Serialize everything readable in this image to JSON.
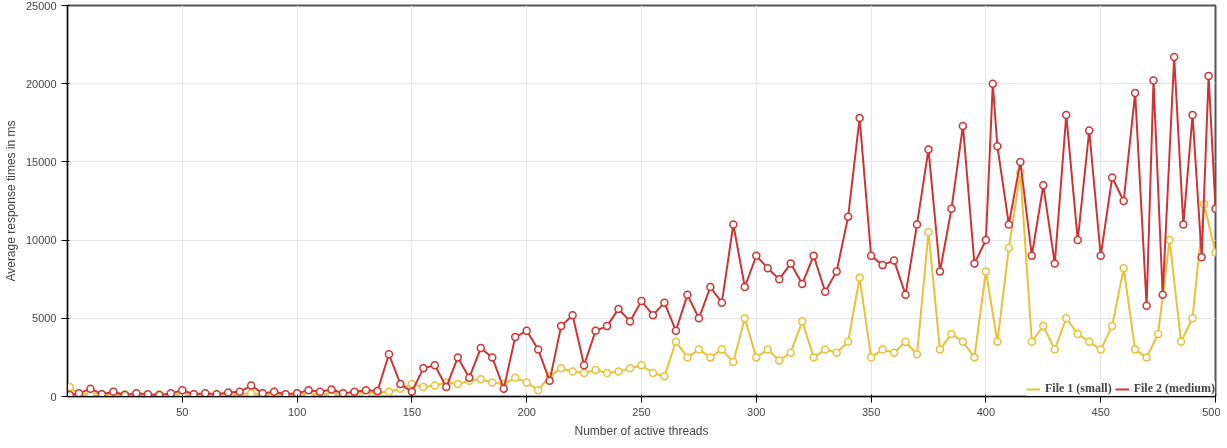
{
  "chart_data": {
    "type": "line",
    "xlabel": "Number of active threads",
    "ylabel": "Average response times in ms",
    "xlim": [
      0,
      500
    ],
    "ylim": [
      0,
      25000
    ],
    "xticks": [
      50,
      100,
      150,
      200,
      250,
      300,
      350,
      400,
      450,
      500
    ],
    "yticks": [
      0,
      5000,
      10000,
      15000,
      20000,
      25000
    ],
    "grid": true,
    "legend": "bottom right",
    "marker": "circle",
    "line_style": "solid",
    "series": [
      {
        "name": "File 1 (small)",
        "color": "#e8c13a",
        "x": [
          1,
          5,
          10,
          15,
          20,
          25,
          30,
          35,
          40,
          45,
          50,
          55,
          60,
          65,
          70,
          75,
          80,
          85,
          90,
          95,
          100,
          105,
          110,
          115,
          120,
          125,
          130,
          135,
          140,
          145,
          150,
          155,
          160,
          165,
          170,
          175,
          180,
          185,
          190,
          195,
          200,
          205,
          210,
          215,
          220,
          225,
          230,
          235,
          240,
          245,
          250,
          255,
          260,
          265,
          270,
          275,
          280,
          285,
          290,
          295,
          300,
          305,
          310,
          315,
          320,
          325,
          330,
          335,
          340,
          345,
          350,
          355,
          360,
          365,
          370,
          375,
          380,
          385,
          390,
          395,
          400,
          405,
          410,
          415,
          420,
          425,
          430,
          435,
          440,
          445,
          450,
          455,
          460,
          465,
          470,
          475,
          480,
          485,
          490,
          495,
          500
        ],
        "values": [
          600,
          150,
          200,
          150,
          100,
          150,
          120,
          100,
          150,
          120,
          200,
          150,
          100,
          150,
          120,
          150,
          200,
          150,
          120,
          150,
          200,
          150,
          200,
          150,
          200,
          250,
          200,
          250,
          300,
          500,
          800,
          600,
          700,
          900,
          800,
          1000,
          1100,
          900,
          800,
          1200,
          900,
          400,
          1300,
          1800,
          1600,
          1500,
          1700,
          1500,
          1600,
          1800,
          2000,
          1500,
          1300,
          3500,
          2500,
          3000,
          2500,
          3000,
          2200,
          5000,
          2500,
          3000,
          2300,
          2800,
          4800,
          2500,
          3000,
          2800,
          3500,
          7600,
          2500,
          3000,
          2800,
          3500,
          2700,
          10500,
          3000,
          4000,
          3500,
          2500,
          8000,
          3500,
          9500,
          14300,
          3500,
          4500,
          3000,
          5000,
          4000,
          3500,
          3000,
          4500,
          8200,
          3000,
          2500,
          4000,
          10000,
          3500,
          5000,
          12300,
          9200
        ]
      },
      {
        "name": "File 2 (medium)",
        "color": "#cc3535",
        "x": [
          1,
          5,
          10,
          15,
          20,
          25,
          30,
          35,
          40,
          45,
          50,
          55,
          60,
          65,
          70,
          75,
          80,
          85,
          90,
          95,
          100,
          105,
          110,
          115,
          120,
          125,
          130,
          135,
          140,
          145,
          150,
          155,
          160,
          165,
          170,
          175,
          180,
          185,
          190,
          195,
          200,
          205,
          210,
          215,
          220,
          225,
          230,
          235,
          240,
          245,
          250,
          255,
          260,
          265,
          270,
          275,
          280,
          285,
          290,
          295,
          300,
          305,
          310,
          315,
          320,
          325,
          330,
          335,
          340,
          345,
          350,
          355,
          360,
          365,
          370,
          375,
          380,
          385,
          390,
          395,
          400,
          403,
          405,
          410,
          415,
          420,
          425,
          430,
          435,
          440,
          445,
          450,
          455,
          460,
          465,
          470,
          473,
          477,
          482,
          486,
          490,
          494,
          497,
          500
        ],
        "values": [
          100,
          200,
          500,
          150,
          300,
          100,
          200,
          150,
          100,
          200,
          400,
          150,
          200,
          150,
          250,
          300,
          700,
          200,
          300,
          150,
          200,
          400,
          300,
          450,
          200,
          300,
          400,
          350,
          2700,
          800,
          300,
          1800,
          2000,
          600,
          2500,
          1200,
          3100,
          2500,
          500,
          3800,
          4200,
          3000,
          1000,
          4500,
          5200,
          2000,
          4200,
          4500,
          5600,
          4800,
          6100,
          5200,
          6000,
          4200,
          6500,
          5000,
          7000,
          6000,
          11000,
          7000,
          9000,
          8200,
          7500,
          8500,
          7200,
          9000,
          6700,
          8000,
          11500,
          17800,
          9000,
          8400,
          8700,
          6500,
          11000,
          15800,
          8000,
          12000,
          17300,
          8500,
          10000,
          20000,
          16000,
          11000,
          15000,
          9000,
          13500,
          8500,
          18000,
          10000,
          17000,
          9000,
          14000,
          12500,
          19400,
          5800,
          20200,
          6500,
          21700,
          11000,
          18000,
          8900,
          20500,
          12000
        ]
      }
    ]
  }
}
